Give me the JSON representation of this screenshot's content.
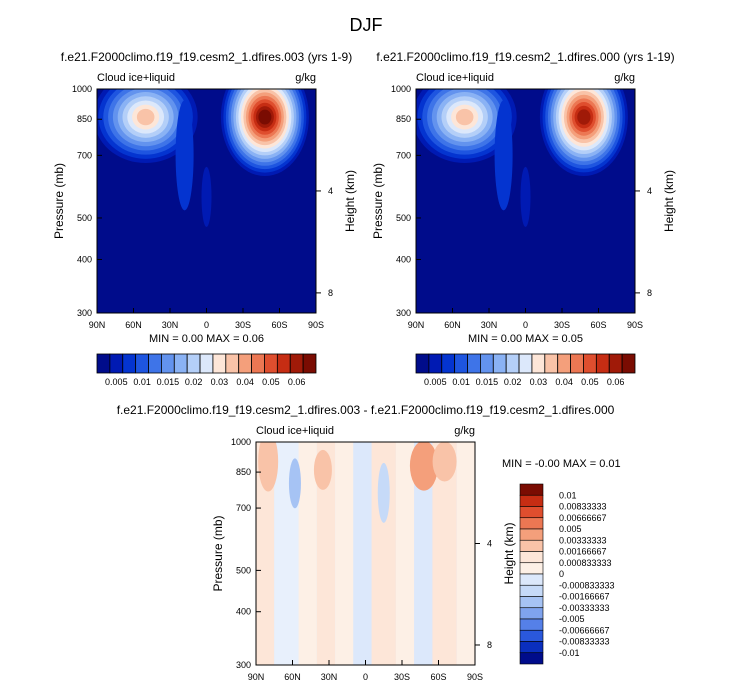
{
  "figure_title": "DJF",
  "chart_data": [
    {
      "type": "heatmap",
      "title": "f.e21.F2000climo.f19_f19.cesm2_1.dfires.003 (yrs 1-9)",
      "variable_label": "Cloud ice+liquid",
      "units_label": "g/kg",
      "ylabel": "Pressure (mb)",
      "ylabel_right": "Height (km)",
      "x_ticks": [
        "90N",
        "60N",
        "30N",
        "0",
        "30S",
        "60S",
        "90S"
      ],
      "x_tick_values": [
        90,
        60,
        30,
        0,
        -30,
        -60,
        -90
      ],
      "y_ticks": [
        300,
        400,
        500,
        700,
        850,
        1000
      ],
      "y_right_ticks": [
        8,
        4
      ],
      "y_log_scale": true,
      "stats": "MIN =  0.00   MAX =  0.06",
      "colorbar": {
        "labels": [
          "0.005",
          "0.01",
          "0.015",
          "0.02",
          "0.03",
          "0.04",
          "0.05",
          "0.06"
        ],
        "colors": [
          "#000c8b",
          "#001ab3",
          "#0434d0",
          "#1e55e0",
          "#3e74e8",
          "#6393ee",
          "#8ab2f4",
          "#b4cff8",
          "#dce8fb",
          "#fde6d8",
          "#f9c3a8",
          "#f49f7b",
          "#ec7753",
          "#df4e2e",
          "#c62d13",
          "#a01a08",
          "#7a0c02"
        ]
      },
      "features": [
        {
          "name": "tropical-maximum",
          "lat": 52,
          "pressure": 880,
          "value": 0.035
        },
        {
          "name": "southern-midlatitude-maximum",
          "lat": -48,
          "pressure": 870,
          "value": 0.06
        }
      ]
    },
    {
      "type": "heatmap",
      "title": "f.e21.F2000climo.f19_f19.cesm2_1.dfires.000 (yrs 1-19)",
      "variable_label": "Cloud ice+liquid",
      "units_label": "g/kg",
      "ylabel": "Pressure (mb)",
      "ylabel_right": "Height (km)",
      "x_ticks": [
        "90N",
        "60N",
        "30N",
        "0",
        "30S",
        "60S",
        "90S"
      ],
      "x_tick_values": [
        90,
        60,
        30,
        0,
        -30,
        -60,
        -90
      ],
      "y_ticks": [
        300,
        400,
        500,
        700,
        850,
        1000
      ],
      "y_right_ticks": [
        8,
        4
      ],
      "y_log_scale": true,
      "stats": "MIN =  0.00   MAX =  0.05",
      "colorbar": {
        "labels": [
          "0.005",
          "0.01",
          "0.015",
          "0.02",
          "0.03",
          "0.04",
          "0.05",
          "0.06"
        ],
        "colors": [
          "#000c8b",
          "#001ab3",
          "#0434d0",
          "#1e55e0",
          "#3e74e8",
          "#6393ee",
          "#8ab2f4",
          "#b4cff8",
          "#dce8fb",
          "#fde6d8",
          "#f9c3a8",
          "#f49f7b",
          "#ec7753",
          "#df4e2e",
          "#c62d13",
          "#a01a08",
          "#7a0c02"
        ]
      },
      "features": [
        {
          "name": "tropical-maximum",
          "lat": 52,
          "pressure": 880,
          "value": 0.035
        },
        {
          "name": "southern-midlatitude-maximum",
          "lat": -48,
          "pressure": 870,
          "value": 0.05
        }
      ]
    },
    {
      "type": "heatmap",
      "title": "f.e21.F2000climo.f19_f19.cesm2_1.dfires.003 - f.e21.F2000climo.f19_f19.cesm2_1.dfires.000",
      "variable_label": "Cloud ice+liquid",
      "units_label": "g/kg",
      "ylabel": "Pressure (mb)",
      "ylabel_right": "Height (km)",
      "x_ticks": [
        "90N",
        "60N",
        "30N",
        "0",
        "30S",
        "60S",
        "90S"
      ],
      "x_tick_values": [
        90,
        60,
        30,
        0,
        -30,
        -60,
        -90
      ],
      "y_ticks": [
        300,
        400,
        500,
        700,
        850,
        1000
      ],
      "y_right_ticks": [
        8,
        4
      ],
      "y_log_scale": true,
      "stats": "MIN = -0.00   MAX =  0.01",
      "colorbar": {
        "labels": [
          "0.01",
          "0.00833333",
          "0.00666667",
          "0.005",
          "0.00333333",
          "0.00166667",
          "0.000833333",
          "0",
          "-0.000833333",
          "-0.00166667",
          "-0.00333333",
          "-0.005",
          "-0.00666667",
          "-0.00833333",
          "-0.01"
        ],
        "colors": [
          "#7a0c02",
          "#c62d13",
          "#df4e2e",
          "#ec7753",
          "#f49f7b",
          "#f9c3a8",
          "#fde6d8",
          "#fdf0e6",
          "#dce8fb",
          "#c6daf8",
          "#a6c3f4",
          "#7fa3ee",
          "#5580e8",
          "#2a58dc",
          "#0a2fbe",
          "#000c8b"
        ]
      }
    }
  ]
}
